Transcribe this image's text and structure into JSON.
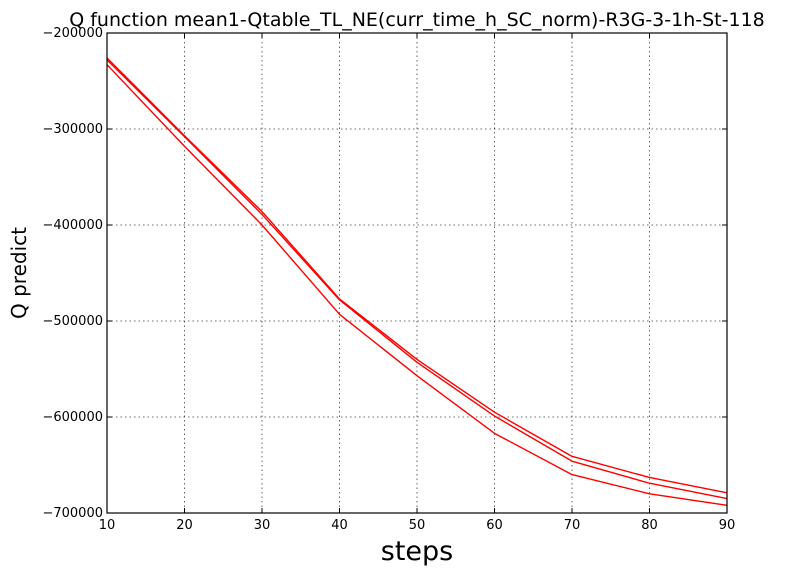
{
  "chart_data": {
    "type": "line",
    "title": "Q function mean1-Qtable_TL_NE(curr_time_h_SC_norm)-R3G-3-1h-St-118",
    "xlabel": "steps",
    "ylabel": "Q predict",
    "xlim": [
      10,
      90
    ],
    "ylim": [
      -700000,
      -200000
    ],
    "xticks": [
      10,
      20,
      30,
      40,
      50,
      60,
      70,
      80,
      90
    ],
    "yticks": [
      -200000,
      -300000,
      -400000,
      -500000,
      -600000,
      -700000
    ],
    "xtick_labels": [
      "10",
      "20",
      "30",
      "40",
      "50",
      "60",
      "70",
      "80",
      "90"
    ],
    "ytick_labels": [
      "−200000",
      "−300000",
      "−400000",
      "−500000",
      "−600000",
      "−700000"
    ],
    "grid": true,
    "legend": "none",
    "line_color": "#ff0000",
    "x": [
      10,
      20,
      30,
      40,
      50,
      60,
      70,
      80,
      90
    ],
    "series": [
      {
        "values": [
          -226000,
          -307000,
          -386000,
          -477000,
          -540000,
          -595000,
          -641000,
          -663000,
          -679000
        ]
      },
      {
        "values": [
          -228000,
          -308000,
          -389000,
          -478000,
          -543000,
          -599000,
          -646000,
          -669000,
          -685000
        ]
      },
      {
        "values": [
          -233000,
          -318000,
          -400000,
          -493000,
          -557000,
          -617000,
          -660000,
          -680000,
          -692000
        ]
      }
    ]
  }
}
